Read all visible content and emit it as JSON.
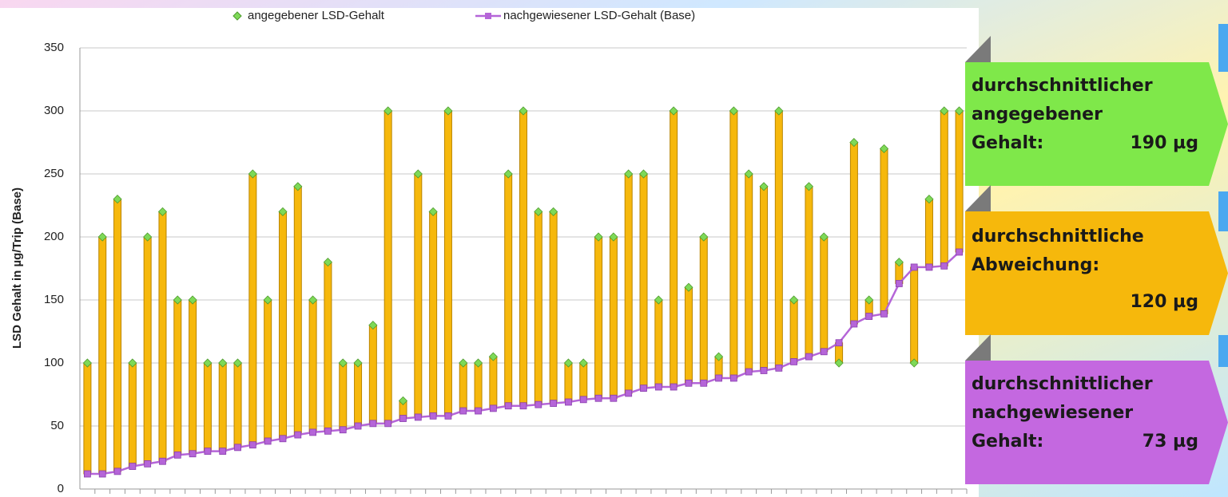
{
  "chart_data": {
    "type": "range-bar",
    "ylabel": "LSD Gehalt in µg/Trip (Base)",
    "ylim": [
      0,
      350
    ],
    "yticks": [
      0,
      50,
      100,
      150,
      200,
      250,
      300,
      350
    ],
    "grid": true,
    "legend": "top",
    "bar_color": "#f6b80c",
    "categories": [
      null,
      null,
      null,
      null,
      null,
      null,
      null,
      null,
      null,
      null,
      null,
      null,
      null,
      null,
      null,
      null,
      null,
      null,
      null,
      null,
      null,
      null,
      null,
      null,
      null,
      null,
      null,
      null,
      null,
      null,
      null,
      null,
      null,
      null,
      null,
      null,
      null,
      null,
      null,
      null,
      null,
      null,
      null,
      null,
      null,
      null,
      null,
      null,
      null,
      null,
      null,
      null,
      null,
      null,
      null,
      null,
      null,
      null,
      null
    ],
    "series": [
      {
        "name": "angegebener LSD-Gehalt",
        "color": "#7ed957",
        "values": [
          100,
          200,
          230,
          100,
          200,
          220,
          150,
          150,
          100,
          100,
          100,
          250,
          150,
          220,
          240,
          150,
          180,
          100,
          100,
          130,
          300,
          70,
          250,
          220,
          300,
          100,
          100,
          105,
          250,
          300,
          220,
          220,
          100,
          100,
          200,
          200,
          250,
          250,
          150,
          300,
          160,
          200,
          105,
          300,
          250,
          240,
          300,
          150,
          240,
          200,
          100,
          275,
          150,
          270,
          180,
          100,
          230,
          300,
          300
        ]
      },
      {
        "name": "nachgewiesener LSD-Gehalt (Base)",
        "color": "#b565d8",
        "values": [
          12,
          12,
          14,
          18,
          20,
          22,
          27,
          28,
          30,
          30,
          33,
          35,
          38,
          40,
          43,
          45,
          46,
          47,
          50,
          52,
          52,
          56,
          57,
          58,
          58,
          62,
          62,
          64,
          66,
          66,
          67,
          68,
          69,
          71,
          72,
          72,
          76,
          80,
          81,
          81,
          84,
          84,
          88,
          88,
          93,
          94,
          96,
          101,
          105,
          109,
          116,
          131,
          137,
          139,
          163,
          176,
          176,
          177,
          188
        ]
      }
    ]
  },
  "annotations": [
    {
      "lines": [
        "durchschnittlicher",
        "angegebener",
        "Gehalt:"
      ],
      "value": "190 µg",
      "color": "#7fe84a"
    },
    {
      "lines": [
        "durchschnittliche",
        "Abweichung:"
      ],
      "value": "120  µg",
      "color": "#f6b80c"
    },
    {
      "lines": [
        "durchschnittlicher",
        "nachgewiesener",
        "Gehalt:"
      ],
      "value": "73  µg",
      "color": "#c468e0"
    }
  ]
}
